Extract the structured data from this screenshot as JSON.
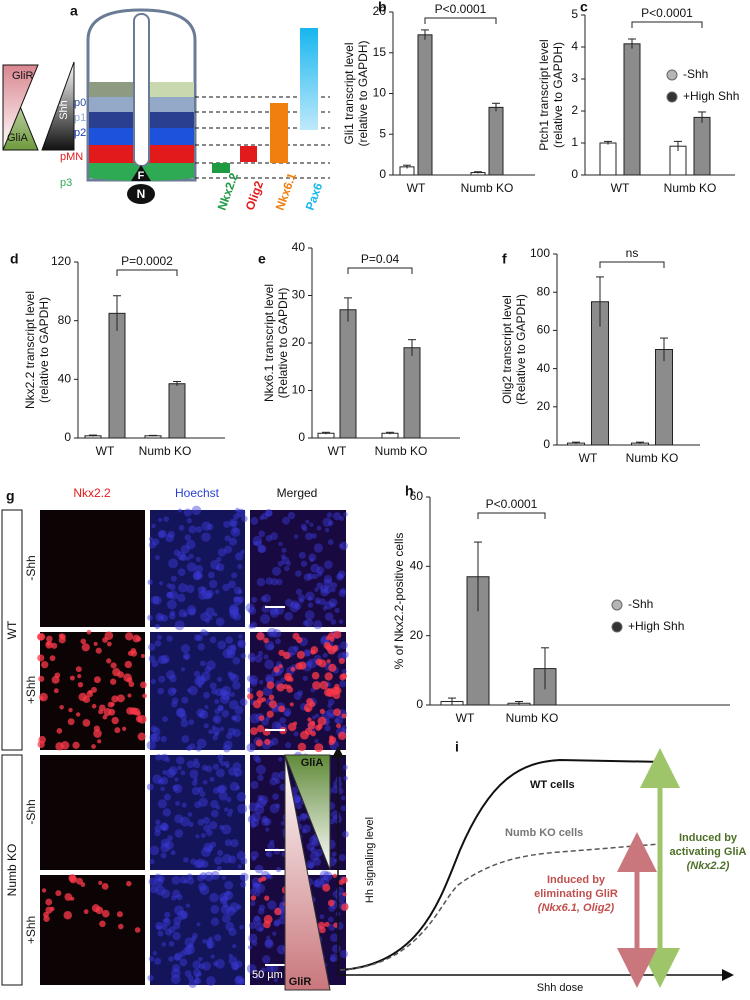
{
  "panel_a": {
    "label": "a",
    "gli_r": "GliR",
    "gli_a": "GliA",
    "shh": "Shh",
    "domains": [
      "p0",
      "p1",
      "p2",
      "pMN",
      "p3"
    ],
    "floor": "F",
    "notochord": "N",
    "markers": [
      "Nkx2.2",
      "Olig2",
      "Nkx6.1",
      "Pax6"
    ]
  },
  "chart_data": [
    {
      "type": "bar",
      "panel": "b",
      "ylabel": [
        "Gli1 transcript level",
        "(relative to GAPDH)"
      ],
      "categories": [
        "WT",
        "Numb KO"
      ],
      "ylim": [
        0,
        20
      ],
      "yticks": [
        0,
        5,
        10,
        15,
        20
      ],
      "annotation": "P<0.0001",
      "series": [
        {
          "color": "#ffffff",
          "values": [
            1,
            0.3
          ],
          "errors": [
            0.2,
            0.1
          ]
        },
        {
          "color": "#8c8c8c",
          "values": [
            17.2,
            8.3
          ],
          "errors": [
            0.6,
            0.5
          ]
        }
      ]
    },
    {
      "type": "bar",
      "panel": "c",
      "ylabel": [
        "Ptch1 transcript level",
        "(relative to GAPDH)"
      ],
      "categories": [
        "WT",
        "Numb KO"
      ],
      "ylim": [
        0,
        5
      ],
      "yticks": [
        0,
        1,
        2,
        3,
        4,
        5
      ],
      "annotation": "P<0.0001",
      "series": [
        {
          "name": "-Shh",
          "color": "#ffffff",
          "marker_color": "#b5b5b5",
          "values": [
            1,
            0.9
          ],
          "errors": [
            0.05,
            0.15
          ]
        },
        {
          "name": "+High Shh",
          "color": "#8c8c8c",
          "marker_color": "#333333",
          "values": [
            4.1,
            1.8
          ],
          "errors": [
            0.15,
            0.17
          ]
        }
      ]
    },
    {
      "type": "bar",
      "panel": "d",
      "ylabel": [
        "Nkx2.2 transcript level",
        "(relative to GAPDH)"
      ],
      "categories": [
        "WT",
        "Numb KO"
      ],
      "ylim": [
        0,
        120
      ],
      "yticks": [
        0,
        40,
        80,
        120
      ],
      "annotation": "P=0.0002",
      "series": [
        {
          "color": "#ffffff",
          "values": [
            1.5,
            1.5
          ],
          "errors": [
            0.5,
            0.3
          ]
        },
        {
          "color": "#8c8c8c",
          "values": [
            85,
            37
          ],
          "errors": [
            12,
            1.5
          ]
        }
      ]
    },
    {
      "type": "bar",
      "panel": "e",
      "ylabel": [
        "Nkx6.1 transcript level",
        "(Relative to GAPDH)"
      ],
      "categories": [
        "WT",
        "Numb KO"
      ],
      "ylim": [
        0,
        40
      ],
      "yticks": [
        0,
        10,
        20,
        30,
        40
      ],
      "annotation": "P=0.04",
      "series": [
        {
          "color": "#ffffff",
          "values": [
            1,
            1
          ],
          "errors": [
            0.2,
            0.2
          ]
        },
        {
          "color": "#8c8c8c",
          "values": [
            27,
            19
          ],
          "errors": [
            2.5,
            1.7
          ]
        }
      ]
    },
    {
      "type": "bar",
      "panel": "f",
      "ylabel": [
        "Olig2 transcript level",
        "(Relative to GAPDH)"
      ],
      "categories": [
        "WT",
        "Numb KO"
      ],
      "ylim": [
        0,
        100
      ],
      "yticks": [
        0,
        20,
        40,
        60,
        80,
        100
      ],
      "annotation": "ns",
      "series": [
        {
          "name": "-Shh",
          "color": "#ffffff",
          "marker_color": "#b5b5b5",
          "values": [
            1,
            1
          ],
          "errors": [
            0.5,
            0.5
          ]
        },
        {
          "name": "+High Shh",
          "color": "#8c8c8c",
          "marker_color": "#333333",
          "values": [
            75,
            50
          ],
          "errors": [
            13,
            6
          ]
        }
      ]
    },
    {
      "type": "bar",
      "panel": "h",
      "ylabel": [
        "% of Nkx2.2-positive cells"
      ],
      "categories": [
        "WT",
        "Numb KO"
      ],
      "ylim": [
        0,
        60
      ],
      "yticks": [
        0,
        20,
        40,
        60
      ],
      "annotation": "P<0.0001",
      "series": [
        {
          "name": "-Shh",
          "color": "#ffffff",
          "marker_color": "#b5b5b5",
          "values": [
            1,
            0.5
          ],
          "errors": [
            1,
            0.5
          ]
        },
        {
          "name": "+High Shh",
          "color": "#8c8c8c",
          "marker_color": "#333333",
          "values": [
            37,
            10.5
          ],
          "errors": [
            10,
            6
          ]
        }
      ]
    }
  ],
  "panel_g": {
    "label": "g",
    "columns": [
      "Nkx2.2",
      "Hoechst",
      "Merged"
    ],
    "conditions": [
      "-Shh",
      "+Shh",
      "-Shh",
      "+Shh"
    ],
    "groups": [
      "WT",
      "Numb KO"
    ],
    "scale_bar": "50 µm"
  },
  "panel_i": {
    "label": "i",
    "gli_a": "GliA",
    "gli_r": "GliR",
    "y_axis": "Hh signaling level",
    "x_axis": "Shh dose",
    "wt": "WT cells",
    "numb": "Numb KO cells",
    "eliminating": [
      "Induced by",
      "eliminating GliR",
      "(Nkx6.1, Olig2)"
    ],
    "activating": [
      "Induced by",
      "activating GliA",
      "(Nkx2.2)"
    ]
  }
}
